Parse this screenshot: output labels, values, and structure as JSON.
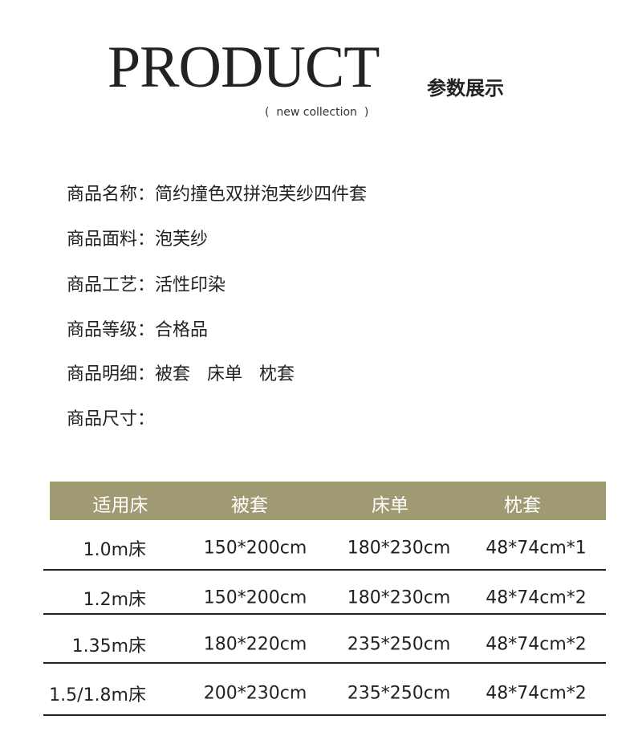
{
  "header": {
    "title": "PRODUCT",
    "subtitle": "参数展示",
    "tagline": "(  new collection  )"
  },
  "specs": [
    {
      "label": "商品名称：",
      "value": "简约撞色双拼泡芙纱四件套"
    },
    {
      "label": "商品面料：",
      "value": "泡芙纱"
    },
    {
      "label": "商品工艺：",
      "value": "活性印染"
    },
    {
      "label": "商品等级：",
      "value": "合格品"
    },
    {
      "label": "商品明细：",
      "value": "被套   床单   枕套"
    },
    {
      "label": "商品尺寸：",
      "value": ""
    }
  ],
  "table": {
    "header_color": "#a09a72",
    "columns": [
      "适用床",
      "被套",
      "床单",
      "枕套"
    ],
    "rows": [
      [
        "1.0m床",
        "150*200cm",
        "180*230cm",
        "48*74cm*1"
      ],
      [
        "1.2m床",
        "150*200cm",
        "180*230cm",
        "48*74cm*2"
      ],
      [
        "1.35m床",
        "180*220cm",
        "235*250cm",
        "48*74cm*2"
      ],
      [
        "1.5/1.8m床",
        "200*230cm",
        "235*250cm",
        "48*74cm*2"
      ]
    ]
  }
}
